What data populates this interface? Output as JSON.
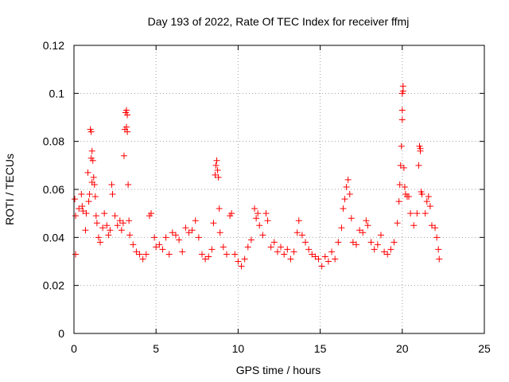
{
  "chart_data": {
    "type": "scatter",
    "title": "Day 193 of 2022, Rate Of TEC Index for receiver ffmj",
    "xlabel": "GPS time / hours",
    "ylabel": "ROTI / TECUs",
    "xlim": [
      0,
      25
    ],
    "ylim": [
      0,
      0.12
    ],
    "xticks": [
      0,
      5,
      10,
      15,
      20,
      25
    ],
    "yticks": [
      0,
      0.02,
      0.04,
      0.06,
      0.08,
      0.1,
      0.12
    ],
    "xtick_labels": [
      "0",
      "5",
      "10",
      "15",
      "20",
      "25"
    ],
    "ytick_labels": [
      "0",
      "0.02",
      "0.04",
      "0.06",
      "0.08",
      "0.1",
      "0.12"
    ],
    "grid": true,
    "marker": "plus",
    "color": "#ff0000",
    "series": [
      {
        "points": [
          [
            0.05,
            0.056
          ],
          [
            0.1,
            0.033
          ],
          [
            0.1,
            0.049
          ],
          [
            0.3,
            0.052
          ],
          [
            0.45,
            0.058
          ],
          [
            0.5,
            0.053
          ],
          [
            0.55,
            0.051
          ],
          [
            0.7,
            0.043
          ],
          [
            0.75,
            0.05
          ],
          [
            0.85,
            0.067
          ],
          [
            0.9,
            0.055
          ],
          [
            0.95,
            0.058
          ],
          [
            1.0,
            0.085
          ],
          [
            1.05,
            0.084
          ],
          [
            1.05,
            0.073
          ],
          [
            1.1,
            0.076
          ],
          [
            1.15,
            0.072
          ],
          [
            1.1,
            0.063
          ],
          [
            1.2,
            0.065
          ],
          [
            1.25,
            0.062
          ],
          [
            1.3,
            0.057
          ],
          [
            1.35,
            0.049
          ],
          [
            1.4,
            0.046
          ],
          [
            1.5,
            0.04
          ],
          [
            1.6,
            0.038
          ],
          [
            1.75,
            0.044
          ],
          [
            1.85,
            0.05
          ],
          [
            2.0,
            0.045
          ],
          [
            2.1,
            0.041
          ],
          [
            2.2,
            0.043
          ],
          [
            2.3,
            0.062
          ],
          [
            2.35,
            0.058
          ],
          [
            2.5,
            0.049
          ],
          [
            2.65,
            0.045
          ],
          [
            2.8,
            0.047
          ],
          [
            2.9,
            0.043
          ],
          [
            3.0,
            0.046
          ],
          [
            3.05,
            0.074
          ],
          [
            3.1,
            0.085
          ],
          [
            3.15,
            0.092
          ],
          [
            3.2,
            0.093
          ],
          [
            3.25,
            0.091
          ],
          [
            3.2,
            0.086
          ],
          [
            3.25,
            0.084
          ],
          [
            3.3,
            0.062
          ],
          [
            3.35,
            0.047
          ],
          [
            3.4,
            0.041
          ],
          [
            3.6,
            0.037
          ],
          [
            3.8,
            0.034
          ],
          [
            4.0,
            0.033
          ],
          [
            4.2,
            0.031
          ],
          [
            4.4,
            0.033
          ],
          [
            4.6,
            0.049
          ],
          [
            4.7,
            0.05
          ],
          [
            4.9,
            0.04
          ],
          [
            5.0,
            0.036
          ],
          [
            5.2,
            0.037
          ],
          [
            5.4,
            0.035
          ],
          [
            5.6,
            0.04
          ],
          [
            5.8,
            0.033
          ],
          [
            6.0,
            0.042
          ],
          [
            6.2,
            0.041
          ],
          [
            6.4,
            0.039
          ],
          [
            6.6,
            0.034
          ],
          [
            6.8,
            0.044
          ],
          [
            7.0,
            0.042
          ],
          [
            7.2,
            0.043
          ],
          [
            7.4,
            0.047
          ],
          [
            7.6,
            0.04
          ],
          [
            7.8,
            0.033
          ],
          [
            8.0,
            0.031
          ],
          [
            8.2,
            0.032
          ],
          [
            8.4,
            0.035
          ],
          [
            8.5,
            0.046
          ],
          [
            8.6,
            0.066
          ],
          [
            8.65,
            0.07
          ],
          [
            8.7,
            0.072
          ],
          [
            8.75,
            0.068
          ],
          [
            8.8,
            0.065
          ],
          [
            8.85,
            0.052
          ],
          [
            8.9,
            0.042
          ],
          [
            9.1,
            0.036
          ],
          [
            9.3,
            0.033
          ],
          [
            9.5,
            0.049
          ],
          [
            9.6,
            0.05
          ],
          [
            9.8,
            0.033
          ],
          [
            10.0,
            0.03
          ],
          [
            10.2,
            0.028
          ],
          [
            10.4,
            0.031
          ],
          [
            10.6,
            0.036
          ],
          [
            10.8,
            0.039
          ],
          [
            11.0,
            0.052
          ],
          [
            11.1,
            0.048
          ],
          [
            11.2,
            0.05
          ],
          [
            11.3,
            0.045
          ],
          [
            11.5,
            0.041
          ],
          [
            11.7,
            0.05
          ],
          [
            11.8,
            0.047
          ],
          [
            12.0,
            0.036
          ],
          [
            12.2,
            0.038
          ],
          [
            12.4,
            0.034
          ],
          [
            12.6,
            0.036
          ],
          [
            12.8,
            0.033
          ],
          [
            13.0,
            0.035
          ],
          [
            13.2,
            0.031
          ],
          [
            13.4,
            0.034
          ],
          [
            13.6,
            0.042
          ],
          [
            13.7,
            0.047
          ],
          [
            13.9,
            0.041
          ],
          [
            14.1,
            0.038
          ],
          [
            14.3,
            0.035
          ],
          [
            14.5,
            0.033
          ],
          [
            14.7,
            0.032
          ],
          [
            14.9,
            0.031
          ],
          [
            15.1,
            0.028
          ],
          [
            15.3,
            0.032
          ],
          [
            15.5,
            0.03
          ],
          [
            15.7,
            0.034
          ],
          [
            15.9,
            0.031
          ],
          [
            16.1,
            0.038
          ],
          [
            16.3,
            0.044
          ],
          [
            16.4,
            0.052
          ],
          [
            16.5,
            0.056
          ],
          [
            16.6,
            0.061
          ],
          [
            16.7,
            0.064
          ],
          [
            16.8,
            0.058
          ],
          [
            16.9,
            0.048
          ],
          [
            17.0,
            0.038
          ],
          [
            17.2,
            0.037
          ],
          [
            17.4,
            0.043
          ],
          [
            17.6,
            0.042
          ],
          [
            17.8,
            0.047
          ],
          [
            17.9,
            0.045
          ],
          [
            18.1,
            0.038
          ],
          [
            18.3,
            0.035
          ],
          [
            18.5,
            0.037
          ],
          [
            18.7,
            0.041
          ],
          [
            18.9,
            0.034
          ],
          [
            19.1,
            0.033
          ],
          [
            19.3,
            0.035
          ],
          [
            19.5,
            0.038
          ],
          [
            19.7,
            0.046
          ],
          [
            19.8,
            0.055
          ],
          [
            19.85,
            0.062
          ],
          [
            19.9,
            0.07
          ],
          [
            19.95,
            0.078
          ],
          [
            20.0,
            0.089
          ],
          [
            20.0,
            0.093
          ],
          [
            20.0,
            0.1
          ],
          [
            20.05,
            0.103
          ],
          [
            20.05,
            0.101
          ],
          [
            20.1,
            0.069
          ],
          [
            20.15,
            0.061
          ],
          [
            20.2,
            0.058
          ],
          [
            20.3,
            0.057
          ],
          [
            20.4,
            0.057
          ],
          [
            20.5,
            0.05
          ],
          [
            20.7,
            0.045
          ],
          [
            20.9,
            0.05
          ],
          [
            21.0,
            0.07
          ],
          [
            21.05,
            0.078
          ],
          [
            21.1,
            0.077
          ],
          [
            21.1,
            0.076
          ],
          [
            21.15,
            0.059
          ],
          [
            21.2,
            0.058
          ],
          [
            21.4,
            0.05
          ],
          [
            21.5,
            0.055
          ],
          [
            21.6,
            0.057
          ],
          [
            21.7,
            0.053
          ],
          [
            21.8,
            0.045
          ],
          [
            22.0,
            0.044
          ],
          [
            22.1,
            0.04
          ],
          [
            22.2,
            0.035
          ],
          [
            22.25,
            0.031
          ]
        ]
      }
    ]
  }
}
